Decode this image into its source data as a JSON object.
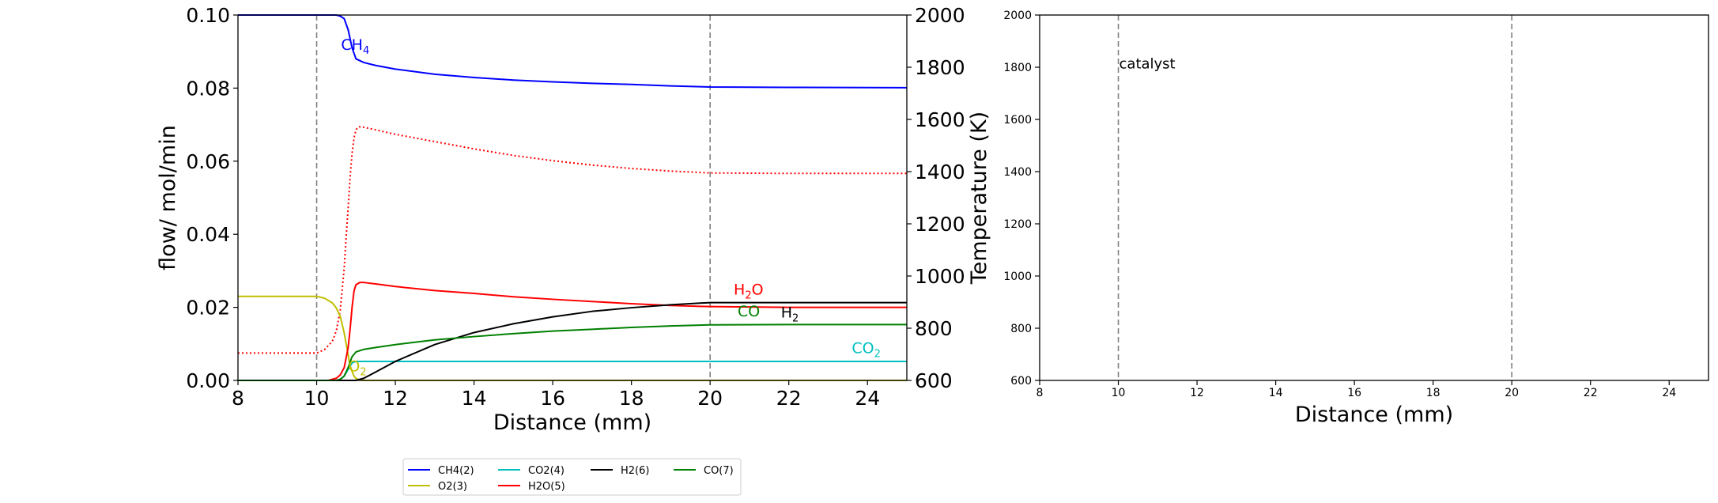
{
  "chart_data": [
    {
      "type": "line",
      "xlabel": "Distance (mm)",
      "ylabel": "flow/ mol/min",
      "y2label": "Temperature (K)",
      "xlim": [
        8,
        25
      ],
      "ylim": [
        0,
        0.1
      ],
      "y2lim": [
        600,
        2000
      ],
      "xticks": [
        "8",
        "10",
        "12",
        "14",
        "16",
        "18",
        "20",
        "22",
        "24"
      ],
      "yticks": [
        "0.00",
        "0.02",
        "0.04",
        "0.06",
        "0.08",
        "0.10"
      ],
      "y2ticks": [
        "600",
        "800",
        "1000",
        "1200",
        "1400",
        "1600",
        "1800",
        "2000"
      ],
      "vlines": [
        10,
        20
      ],
      "series": [
        {
          "name": "CH4(2)",
          "color": "#0000ff",
          "x": [
            8,
            10,
            10.5,
            10.6,
            10.7,
            10.8,
            10.9,
            11.0,
            11.2,
            11.5,
            12,
            13,
            14,
            15,
            16,
            17,
            18,
            19,
            20,
            22,
            25
          ],
          "y": [
            0.1,
            0.1,
            0.1,
            0.0997,
            0.099,
            0.096,
            0.091,
            0.088,
            0.087,
            0.0862,
            0.0852,
            0.0838,
            0.0829,
            0.0822,
            0.0817,
            0.0813,
            0.081,
            0.0806,
            0.0803,
            0.0802,
            0.0801
          ]
        },
        {
          "name": "O2(3)",
          "color": "#bfbf00",
          "x": [
            8,
            9,
            10,
            10.2,
            10.4,
            10.5,
            10.6,
            10.7,
            10.75,
            10.8,
            10.85,
            10.9,
            10.95,
            11.0,
            11.1,
            11.2,
            12,
            25
          ],
          "y": [
            0.023,
            0.023,
            0.023,
            0.0225,
            0.0212,
            0.0198,
            0.0175,
            0.013,
            0.01,
            0.007,
            0.004,
            0.0025,
            0.0012,
            0.0005,
            0.0001,
            0.0,
            0.0,
            0.0
          ]
        },
        {
          "name": "CO2(4)",
          "color": "#00bfbf",
          "x": [
            8,
            10.5,
            10.6,
            10.7,
            10.8,
            10.9,
            11.0,
            11.2,
            12,
            25
          ],
          "y": [
            0.0,
            0.0,
            0.0003,
            0.0012,
            0.003,
            0.0048,
            0.0052,
            0.0052,
            0.0052,
            0.0052
          ]
        },
        {
          "name": "H2O(5)",
          "color": "#ff0000",
          "x": [
            8,
            10.3,
            10.5,
            10.6,
            10.7,
            10.8,
            10.85,
            10.9,
            10.95,
            11.0,
            11.1,
            11.2,
            11.5,
            12,
            13,
            14,
            15,
            16,
            17,
            18,
            19,
            20,
            22,
            25
          ],
          "y": [
            0.0,
            0.0,
            0.0006,
            0.0015,
            0.0035,
            0.009,
            0.014,
            0.02,
            0.0245,
            0.0262,
            0.0268,
            0.0268,
            0.0264,
            0.0257,
            0.0246,
            0.0238,
            0.0229,
            0.0222,
            0.0216,
            0.021,
            0.0205,
            0.0202,
            0.02,
            0.02
          ]
        },
        {
          "name": "H2(6)",
          "color": "#000000",
          "x": [
            8,
            11.0,
            11.2,
            11.5,
            12,
            13,
            14,
            15,
            16,
            17,
            18,
            19,
            20,
            20.5,
            22,
            25
          ],
          "y": [
            0.0,
            0.0,
            0.0006,
            0.0023,
            0.0052,
            0.0098,
            0.0131,
            0.0155,
            0.0174,
            0.0189,
            0.0199,
            0.0207,
            0.0213,
            0.0213,
            0.0213,
            0.0213
          ]
        },
        {
          "name": "CO(7)",
          "color": "#008000",
          "x": [
            8,
            10.5,
            10.6,
            10.7,
            10.8,
            10.9,
            11.0,
            11.2,
            11.5,
            12,
            13,
            14,
            15,
            16,
            17,
            18,
            19,
            20,
            22,
            25
          ],
          "y": [
            0.0,
            0.0,
            0.0003,
            0.0012,
            0.0035,
            0.0065,
            0.0078,
            0.0085,
            0.009,
            0.0098,
            0.0111,
            0.012,
            0.0128,
            0.0135,
            0.014,
            0.0145,
            0.0149,
            0.0152,
            0.0153,
            0.0153
          ]
        }
      ],
      "temperature": {
        "color": "#ff0000",
        "dash": "dotted",
        "axis": "right",
        "x": [
          8,
          9,
          10,
          10.2,
          10.4,
          10.5,
          10.6,
          10.7,
          10.75,
          10.8,
          10.85,
          10.9,
          10.95,
          11.0,
          11.05,
          11.1,
          11.2,
          11.5,
          12,
          13,
          14,
          15,
          16,
          17,
          18,
          19,
          20,
          22,
          25
        ],
        "y": [
          705,
          705,
          705,
          718,
          750,
          790,
          870,
          1030,
          1150,
          1260,
          1380,
          1470,
          1530,
          1560,
          1570,
          1572,
          1570,
          1560,
          1543,
          1515,
          1487,
          1462,
          1442,
          1425,
          1412,
          1402,
          1395,
          1393,
          1393
        ]
      },
      "annotations": [
        {
          "base": "CH",
          "sub": "4",
          "color": "#0000ff",
          "x": 10.62,
          "y": 0.0905
        },
        {
          "base": "H",
          "sub": "2",
          "suffix": "O",
          "color": "#ff0000",
          "x": 20.6,
          "y": 0.0235
        },
        {
          "base": "CO",
          "sub": "",
          "color": "#008000",
          "x": 20.7,
          "y": 0.0175
        },
        {
          "base": "H",
          "sub": "2",
          "color": "#000000",
          "x": 21.8,
          "y": 0.0172
        },
        {
          "base": "CO",
          "sub": "2",
          "color": "#00bfbf",
          "x": 23.6,
          "y": 0.0075
        },
        {
          "base": "O",
          "sub": "2",
          "color": "#bfbf00",
          "x": 10.8,
          "y": 0.0025
        }
      ],
      "legend": {
        "placement": "bottom-center",
        "entries": [
          {
            "label": "CH4(2)",
            "color": "#0000ff"
          },
          {
            "label": "CO2(4)",
            "color": "#00bfbf"
          },
          {
            "label": "H2(6)",
            "color": "#000000"
          },
          {
            "label": "CO(7)",
            "color": "#008000"
          },
          {
            "label": "O2(3)",
            "color": "#bfbf00"
          },
          {
            "label": "H2O(5)",
            "color": "#ff0000"
          }
        ]
      }
    },
    {
      "type": "line",
      "xlabel": "Distance (mm)",
      "ylabel": "",
      "xlim": [
        8,
        25
      ],
      "ylim": [
        600,
        2000
      ],
      "xticks": [
        "8",
        "10",
        "12",
        "14",
        "16",
        "18",
        "20",
        "22",
        "24"
      ],
      "yticks": [
        "600",
        "800",
        "1000",
        "1200",
        "1400",
        "1600",
        "1800",
        "2000"
      ],
      "vlines": [
        10,
        20
      ],
      "annotations": [
        {
          "text": "catalyst",
          "x": 10,
          "y": 1810
        }
      ],
      "series": []
    }
  ]
}
